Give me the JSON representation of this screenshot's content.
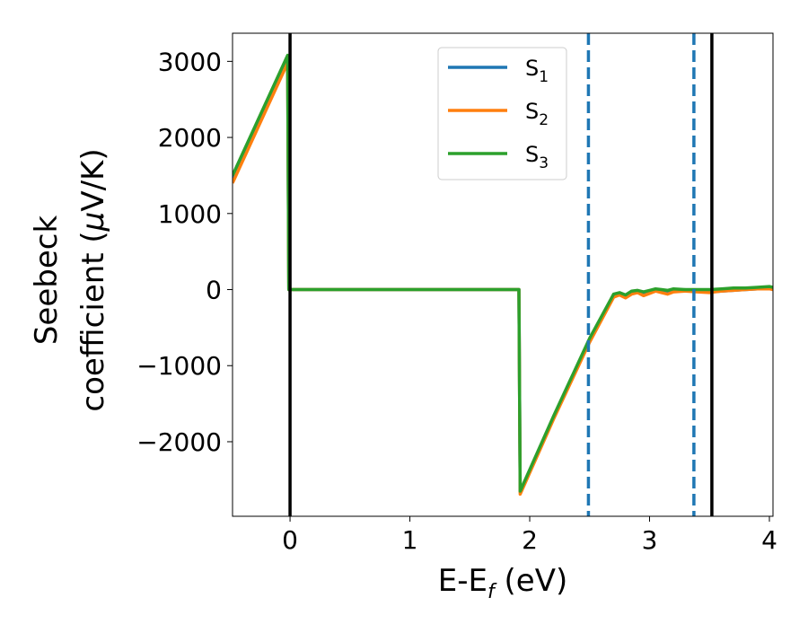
{
  "chart_data": {
    "type": "line",
    "title": "",
    "xlabel": "E-E",
    "xlabel_sub": "f",
    "xlabel_unit": " (eV)",
    "ylabel_line1": "Seebeck",
    "ylabel_line2": "coefficient  (",
    "ylabel_mu": "μ",
    "ylabel_unit": "V/K)",
    "xlim": [
      -0.48,
      4.03
    ],
    "ylim": [
      -2980,
      3370
    ],
    "xticks": [
      0,
      1,
      2,
      3,
      4
    ],
    "xtick_labels": [
      "0",
      "1",
      "2",
      "3",
      "4"
    ],
    "yticks": [
      -2000,
      -1000,
      0,
      1000,
      2000,
      3000
    ],
    "ytick_labels": [
      "−2000",
      "−1000",
      "0",
      "1000",
      "2000",
      "3000"
    ],
    "grid": false,
    "legend_position": "top-center",
    "vertical_lines": [
      {
        "x": 0.0,
        "style": "solid",
        "color": "#000000"
      },
      {
        "x": 2.49,
        "style": "dashed",
        "color": "#1f77b4"
      },
      {
        "x": 3.37,
        "style": "dashed",
        "color": "#1f77b4"
      },
      {
        "x": 3.52,
        "style": "solid",
        "color": "#000000"
      }
    ],
    "series": [
      {
        "name": "S",
        "sub": "1",
        "color": "#1f77b4",
        "x": [
          -0.48,
          -0.02,
          -0.01,
          1.91,
          1.92,
          2.2,
          2.5,
          2.7,
          2.75,
          2.8,
          2.85,
          2.9,
          2.95,
          3.0,
          3.05,
          3.1,
          3.15,
          3.2,
          3.3,
          3.4,
          3.5,
          3.6,
          3.7,
          3.8,
          3.9,
          4.0,
          4.03
        ],
        "y": [
          1450,
          3050,
          0,
          0,
          -2660,
          -1680,
          -660,
          -80,
          -60,
          -90,
          -50,
          -20,
          -60,
          -30,
          -10,
          -20,
          -40,
          -20,
          -10,
          -20,
          -30,
          -20,
          -10,
          0,
          10,
          20,
          10
        ]
      },
      {
        "name": "S",
        "sub": "2",
        "color": "#ff7f0e",
        "x": [
          -0.48,
          -0.02,
          -0.01,
          1.91,
          1.92,
          2.2,
          2.5,
          2.7,
          2.75,
          2.8,
          2.85,
          2.9,
          2.95,
          3.0,
          3.05,
          3.1,
          3.15,
          3.2,
          3.3,
          3.4,
          3.5,
          3.6,
          3.7,
          3.8,
          3.9,
          4.0,
          4.03
        ],
        "y": [
          1400,
          2980,
          0,
          0,
          -2690,
          -1700,
          -690,
          -100,
          -70,
          -110,
          -60,
          -40,
          -80,
          -50,
          -20,
          -40,
          -60,
          -30,
          -20,
          -30,
          -40,
          -20,
          -10,
          0,
          10,
          10,
          0
        ]
      },
      {
        "name": "S",
        "sub": "3",
        "color": "#2ca02c",
        "x": [
          -0.48,
          -0.02,
          -0.01,
          1.91,
          1.92,
          2.2,
          2.5,
          2.7,
          2.75,
          2.8,
          2.85,
          2.9,
          2.95,
          3.0,
          3.05,
          3.1,
          3.15,
          3.2,
          3.3,
          3.4,
          3.5,
          3.6,
          3.7,
          3.8,
          3.9,
          4.0,
          4.03
        ],
        "y": [
          1500,
          3080,
          0,
          0,
          -2650,
          -1660,
          -640,
          -60,
          -40,
          -70,
          -20,
          -10,
          -30,
          -10,
          10,
          0,
          -10,
          10,
          0,
          0,
          0,
          10,
          20,
          20,
          30,
          40,
          30
        ]
      }
    ]
  }
}
